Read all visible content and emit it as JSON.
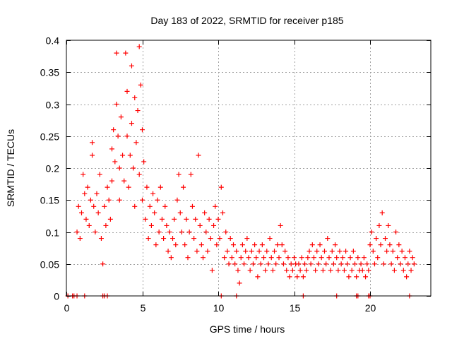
{
  "chart_data": {
    "type": "scatter",
    "title": "Day 183 of 2022, SRMTID for receiver p185",
    "xlabel": "GPS time / hours",
    "ylabel": "SRMTID / TECUs",
    "xlim": [
      0,
      24
    ],
    "ylim": [
      0,
      0.4
    ],
    "grid": true,
    "marker": "+",
    "color": "#ff0000",
    "x_ticks": [
      0,
      5,
      10,
      15,
      20
    ],
    "x_tick_labels": [
      "0",
      "5",
      "10",
      "15",
      "20"
    ],
    "y_ticks": [
      0,
      0.05,
      0.1,
      0.15,
      0.2,
      0.25,
      0.3,
      0.35,
      0.4
    ],
    "y_tick_labels": [
      "0",
      "0.05",
      "0.1",
      "0.15",
      "0.2",
      "0.25",
      "0.3",
      "0.35",
      "0.4"
    ],
    "series": [
      {
        "name": "SRMTID",
        "points": [
          [
            0.1,
            0
          ],
          [
            0.4,
            0
          ],
          [
            0.5,
            0
          ],
          [
            0.7,
            0
          ],
          [
            1.2,
            0
          ],
          [
            2.4,
            0
          ],
          [
            2.5,
            0
          ],
          [
            2.7,
            0
          ],
          [
            10.2,
            0
          ],
          [
            11.2,
            0
          ],
          [
            15.6,
            0
          ],
          [
            17.8,
            0
          ],
          [
            19.1,
            0
          ],
          [
            19.2,
            0
          ],
          [
            19.9,
            0
          ],
          [
            20.0,
            0
          ],
          [
            22.6,
            0
          ],
          [
            0.7,
            0.1
          ],
          [
            0.8,
            0.14
          ],
          [
            0.9,
            0.09
          ],
          [
            1.0,
            0.13
          ],
          [
            1.1,
            0.19
          ],
          [
            1.2,
            0.16
          ],
          [
            1.3,
            0.12
          ],
          [
            1.4,
            0.17
          ],
          [
            1.5,
            0.11
          ],
          [
            1.6,
            0.15
          ],
          [
            1.7,
            0.24
          ],
          [
            1.7,
            0.22
          ],
          [
            1.8,
            0.14
          ],
          [
            1.9,
            0.1
          ],
          [
            2.0,
            0.16
          ],
          [
            2.1,
            0.13
          ],
          [
            2.2,
            0.19
          ],
          [
            2.3,
            0.09
          ],
          [
            2.4,
            0.05
          ],
          [
            2.5,
            0.14
          ],
          [
            2.6,
            0.11
          ],
          [
            2.7,
            0.17
          ],
          [
            2.8,
            0.15
          ],
          [
            2.9,
            0.12
          ],
          [
            3.0,
            0.18
          ],
          [
            3.0,
            0.23
          ],
          [
            3.1,
            0.26
          ],
          [
            3.2,
            0.21
          ],
          [
            3.3,
            0.38
          ],
          [
            3.3,
            0.3
          ],
          [
            3.4,
            0.25
          ],
          [
            3.5,
            0.2
          ],
          [
            3.5,
            0.15
          ],
          [
            3.6,
            0.28
          ],
          [
            3.7,
            0.22
          ],
          [
            3.8,
            0.18
          ],
          [
            3.9,
            0.38
          ],
          [
            4.0,
            0.25
          ],
          [
            4.0,
            0.32
          ],
          [
            4.1,
            0.17
          ],
          [
            4.2,
            0.22
          ],
          [
            4.3,
            0.36
          ],
          [
            4.3,
            0.27
          ],
          [
            4.4,
            0.2
          ],
          [
            4.5,
            0.31
          ],
          [
            4.5,
            0.14
          ],
          [
            4.6,
            0.24
          ],
          [
            4.7,
            0.29
          ],
          [
            4.8,
            0.39
          ],
          [
            4.8,
            0.19
          ],
          [
            4.9,
            0.33
          ],
          [
            5.0,
            0.26
          ],
          [
            5.0,
            0.15
          ],
          [
            5.1,
            0.21
          ],
          [
            5.2,
            0.12
          ],
          [
            5.3,
            0.17
          ],
          [
            5.4,
            0.09
          ],
          [
            5.5,
            0.14
          ],
          [
            5.6,
            0.11
          ],
          [
            5.7,
            0.16
          ],
          [
            5.8,
            0.13
          ],
          [
            5.9,
            0.08
          ],
          [
            6.0,
            0.15
          ],
          [
            6.1,
            0.1
          ],
          [
            6.2,
            0.17
          ],
          [
            6.3,
            0.12
          ],
          [
            6.4,
            0.09
          ],
          [
            6.5,
            0.14
          ],
          [
            6.6,
            0.11
          ],
          [
            6.7,
            0.07
          ],
          [
            6.8,
            0.1
          ],
          [
            6.9,
            0.06
          ],
          [
            7.0,
            0.09
          ],
          [
            7.1,
            0.12
          ],
          [
            7.2,
            0.08
          ],
          [
            7.3,
            0.15
          ],
          [
            7.4,
            0.19
          ],
          [
            7.5,
            0.13
          ],
          [
            7.6,
            0.1
          ],
          [
            7.7,
            0.17
          ],
          [
            7.8,
            0.08
          ],
          [
            7.9,
            0.12
          ],
          [
            8.0,
            0.06
          ],
          [
            8.1,
            0.1
          ],
          [
            8.2,
            0.19
          ],
          [
            8.3,
            0.14
          ],
          [
            8.4,
            0.09
          ],
          [
            8.5,
            0.12
          ],
          [
            8.6,
            0.07
          ],
          [
            8.7,
            0.22
          ],
          [
            8.8,
            0.11
          ],
          [
            8.9,
            0.08
          ],
          [
            9.0,
            0.06
          ],
          [
            9.1,
            0.13
          ],
          [
            9.2,
            0.1
          ],
          [
            9.3,
            0.07
          ],
          [
            9.4,
            0.12
          ],
          [
            9.5,
            0.09
          ],
          [
            9.6,
            0.04
          ],
          [
            9.7,
            0.11
          ],
          [
            9.8,
            0.14
          ],
          [
            9.9,
            0.08
          ],
          [
            10.0,
            0.12
          ],
          [
            10.1,
            0.09
          ],
          [
            10.2,
            0.17
          ],
          [
            10.3,
            0.13
          ],
          [
            10.4,
            0.06
          ],
          [
            10.5,
            0.1
          ],
          [
            10.6,
            0.07
          ],
          [
            10.7,
            0.05
          ],
          [
            10.8,
            0.09
          ],
          [
            10.9,
            0.06
          ],
          [
            11.0,
            0.08
          ],
          [
            11.1,
            0.05
          ],
          [
            11.2,
            0.07
          ],
          [
            11.3,
            0.04
          ],
          [
            11.4,
            0.02
          ],
          [
            11.5,
            0.06
          ],
          [
            11.6,
            0.08
          ],
          [
            11.7,
            0.05
          ],
          [
            11.8,
            0.07
          ],
          [
            11.9,
            0.09
          ],
          [
            12.0,
            0.06
          ],
          [
            12.1,
            0.04
          ],
          [
            12.2,
            0.07
          ],
          [
            12.3,
            0.05
          ],
          [
            12.4,
            0.08
          ],
          [
            12.5,
            0.06
          ],
          [
            12.6,
            0.03
          ],
          [
            12.7,
            0.07
          ],
          [
            12.8,
            0.05
          ],
          [
            12.9,
            0.08
          ],
          [
            13.0,
            0.06
          ],
          [
            13.1,
            0.04
          ],
          [
            13.2,
            0.07
          ],
          [
            13.3,
            0.05
          ],
          [
            13.4,
            0.09
          ],
          [
            13.5,
            0.06
          ],
          [
            13.6,
            0.04
          ],
          [
            13.7,
            0.07
          ],
          [
            13.8,
            0.05
          ],
          [
            13.9,
            0.08
          ],
          [
            14.0,
            0.06
          ],
          [
            14.1,
            0.11
          ],
          [
            14.2,
            0.08
          ],
          [
            14.3,
            0.05
          ],
          [
            14.4,
            0.07
          ],
          [
            14.5,
            0.04
          ],
          [
            14.6,
            0.06
          ],
          [
            14.7,
            0.03
          ],
          [
            14.8,
            0.05
          ],
          [
            14.9,
            0.04
          ],
          [
            15.0,
            0.06
          ],
          [
            15.1,
            0.05
          ],
          [
            15.2,
            0.03
          ],
          [
            15.3,
            0.05
          ],
          [
            15.4,
            0.04
          ],
          [
            15.5,
            0.06
          ],
          [
            15.6,
            0.03
          ],
          [
            15.7,
            0.05
          ],
          [
            15.8,
            0.04
          ],
          [
            15.9,
            0.06
          ],
          [
            16.0,
            0.07
          ],
          [
            16.1,
            0.05
          ],
          [
            16.2,
            0.08
          ],
          [
            16.3,
            0.06
          ],
          [
            16.4,
            0.04
          ],
          [
            16.5,
            0.07
          ],
          [
            16.6,
            0.05
          ],
          [
            16.7,
            0.08
          ],
          [
            16.8,
            0.06
          ],
          [
            16.9,
            0.04
          ],
          [
            17.0,
            0.07
          ],
          [
            17.1,
            0.05
          ],
          [
            17.2,
            0.09
          ],
          [
            17.3,
            0.06
          ],
          [
            17.4,
            0.04
          ],
          [
            17.5,
            0.07
          ],
          [
            17.6,
            0.05
          ],
          [
            17.7,
            0.08
          ],
          [
            17.8,
            0.06
          ],
          [
            17.9,
            0.04
          ],
          [
            18.0,
            0.07
          ],
          [
            18.1,
            0.05
          ],
          [
            18.2,
            0.06
          ],
          [
            18.3,
            0.04
          ],
          [
            18.4,
            0.07
          ],
          [
            18.5,
            0.05
          ],
          [
            18.6,
            0.03
          ],
          [
            18.7,
            0.06
          ],
          [
            18.8,
            0.04
          ],
          [
            18.9,
            0.07
          ],
          [
            19.0,
            0.05
          ],
          [
            19.1,
            0.03
          ],
          [
            19.2,
            0.06
          ],
          [
            19.3,
            0.04
          ],
          [
            19.4,
            0.05
          ],
          [
            19.5,
            0.04
          ],
          [
            19.6,
            0.06
          ],
          [
            19.7,
            0.03
          ],
          [
            19.8,
            0.05
          ],
          [
            19.9,
            0.04
          ],
          [
            20.0,
            0.08
          ],
          [
            20.1,
            0.1
          ],
          [
            20.2,
            0.07
          ],
          [
            20.3,
            0.05
          ],
          [
            20.4,
            0.09
          ],
          [
            20.5,
            0.06
          ],
          [
            20.6,
            0.11
          ],
          [
            20.7,
            0.08
          ],
          [
            20.8,
            0.13
          ],
          [
            20.9,
            0.05
          ],
          [
            21.0,
            0.09
          ],
          [
            21.1,
            0.07
          ],
          [
            21.2,
            0.11
          ],
          [
            21.3,
            0.08
          ],
          [
            21.4,
            0.05
          ],
          [
            21.5,
            0.07
          ],
          [
            21.6,
            0.04
          ],
          [
            21.7,
            0.1
          ],
          [
            21.8,
            0.06
          ],
          [
            21.9,
            0.08
          ],
          [
            22.0,
            0.05
          ],
          [
            22.1,
            0.07
          ],
          [
            22.2,
            0.04
          ],
          [
            22.3,
            0.06
          ],
          [
            22.4,
            0.03
          ],
          [
            22.5,
            0.05
          ],
          [
            22.6,
            0.07
          ],
          [
            22.7,
            0.04
          ],
          [
            22.8,
            0.06
          ],
          [
            22.9,
            0.05
          ]
        ]
      }
    ]
  }
}
